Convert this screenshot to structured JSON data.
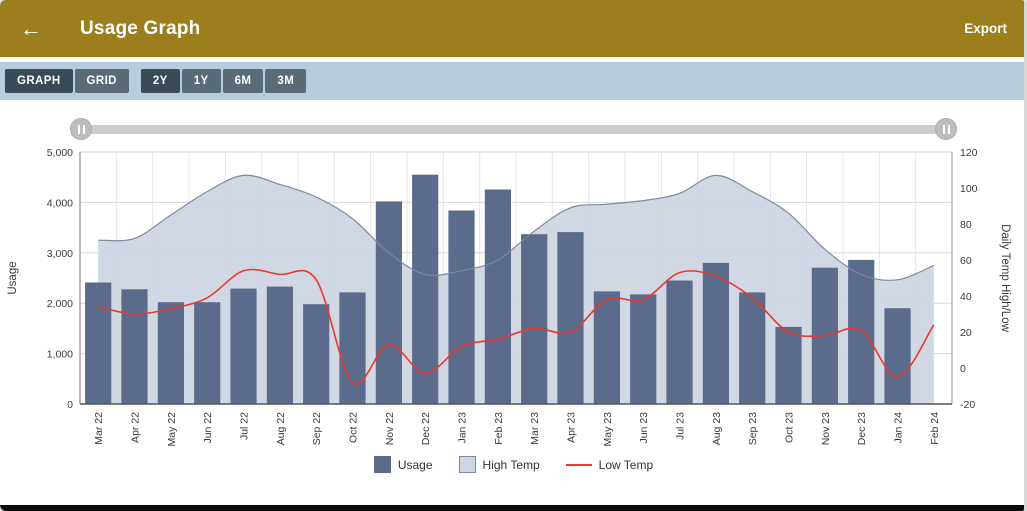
{
  "header": {
    "back_icon": "←",
    "title": "Usage Graph",
    "export_label": "Export"
  },
  "icons": {
    "back": "left-arrow",
    "slider_handle": "pause-bars"
  },
  "colors": {
    "header_bg": "#9c7e1d",
    "toolbar_bg": "#b6cedb",
    "button_bg": "#5a6b77",
    "button_selected_bg": "#394a56",
    "bar_color": "#5b6b8c",
    "area_color": "#cfd6e2",
    "area_line_color": "#7e88a0",
    "line_color": "#e8392e",
    "bottom_bar": "#0b0b0b"
  },
  "toolbar": {
    "view_buttons": [
      {
        "label": "GRAPH",
        "selected": true
      },
      {
        "label": "GRID",
        "selected": false
      }
    ],
    "range_buttons": [
      {
        "label": "2Y",
        "selected": true
      },
      {
        "label": "1Y",
        "selected": false
      },
      {
        "label": "6M",
        "selected": false
      },
      {
        "label": "3M",
        "selected": false
      }
    ]
  },
  "chart_data": {
    "type": "combo",
    "title": "Usage Graph",
    "grid": true,
    "legend_position": "bottom",
    "categories": [
      "Mar 22",
      "Apr 22",
      "May 22",
      "Jun 22",
      "Jul 22",
      "Aug 22",
      "Sep 22",
      "Oct 22",
      "Nov 22",
      "Dec 22",
      "Jan 23",
      "Feb 23",
      "Mar 23",
      "Apr 23",
      "May 23",
      "Jun 23",
      "Jul 23",
      "Aug 23",
      "Sep 23",
      "Oct 23",
      "Nov 23",
      "Dec 23",
      "Jan 24",
      "Feb 24"
    ],
    "series": [
      {
        "name": "Usage",
        "type": "bar",
        "axis": "left",
        "color": "#5b6b8c",
        "values": [
          2410,
          2275,
          2020,
          2020,
          2290,
          2330,
          1980,
          2215,
          4020,
          4550,
          3840,
          4255,
          3370,
          3410,
          2235,
          2175,
          2450,
          2800,
          2215,
          1530,
          2705,
          2860,
          1900,
          null
        ]
      },
      {
        "name": "High Temp",
        "type": "area",
        "axis": "right",
        "color": "#cfd6e2",
        "line_color": "#7e88a0",
        "values": [
          71,
          72,
          85,
          98,
          107,
          102,
          95,
          83,
          64,
          52,
          54,
          60,
          76,
          89,
          91,
          93,
          97,
          107,
          98,
          86,
          66,
          52,
          49,
          57
        ]
      },
      {
        "name": "Low Temp",
        "type": "line",
        "axis": "right",
        "color": "#e8392e",
        "values": [
          34,
          30,
          33,
          39,
          54,
          52,
          49,
          -8,
          13,
          -3,
          12,
          16,
          22,
          20,
          38,
          38,
          53,
          51,
          39,
          20,
          18,
          21,
          -5,
          24
        ]
      }
    ],
    "left_axis": {
      "label": "Usage",
      "min": 0,
      "max": 5000,
      "ticks": [
        {
          "value": 5000,
          "label": "5,000"
        },
        {
          "value": 4000,
          "label": "4,000"
        },
        {
          "value": 3000,
          "label": "3,000"
        },
        {
          "value": 2000,
          "label": "2,000"
        },
        {
          "value": 1000,
          "label": "1,000"
        },
        {
          "value": 0,
          "label": "0"
        }
      ]
    },
    "right_axis": {
      "label": "Daily Temp High/Low",
      "min": -20,
      "max": 120,
      "ticks": [
        {
          "value": 120,
          "label": "120"
        },
        {
          "value": 100,
          "label": "100"
        },
        {
          "value": 80,
          "label": "80"
        },
        {
          "value": 60,
          "label": "60"
        },
        {
          "value": 40,
          "label": "40"
        },
        {
          "value": 20,
          "label": "20"
        },
        {
          "value": 0,
          "label": "0"
        },
        {
          "value": -20,
          "label": "-20"
        }
      ]
    },
    "legend": [
      {
        "label": "Usage",
        "swatch": "bar"
      },
      {
        "label": "High Temp",
        "swatch": "area"
      },
      {
        "label": "Low Temp",
        "swatch": "line"
      }
    ]
  }
}
